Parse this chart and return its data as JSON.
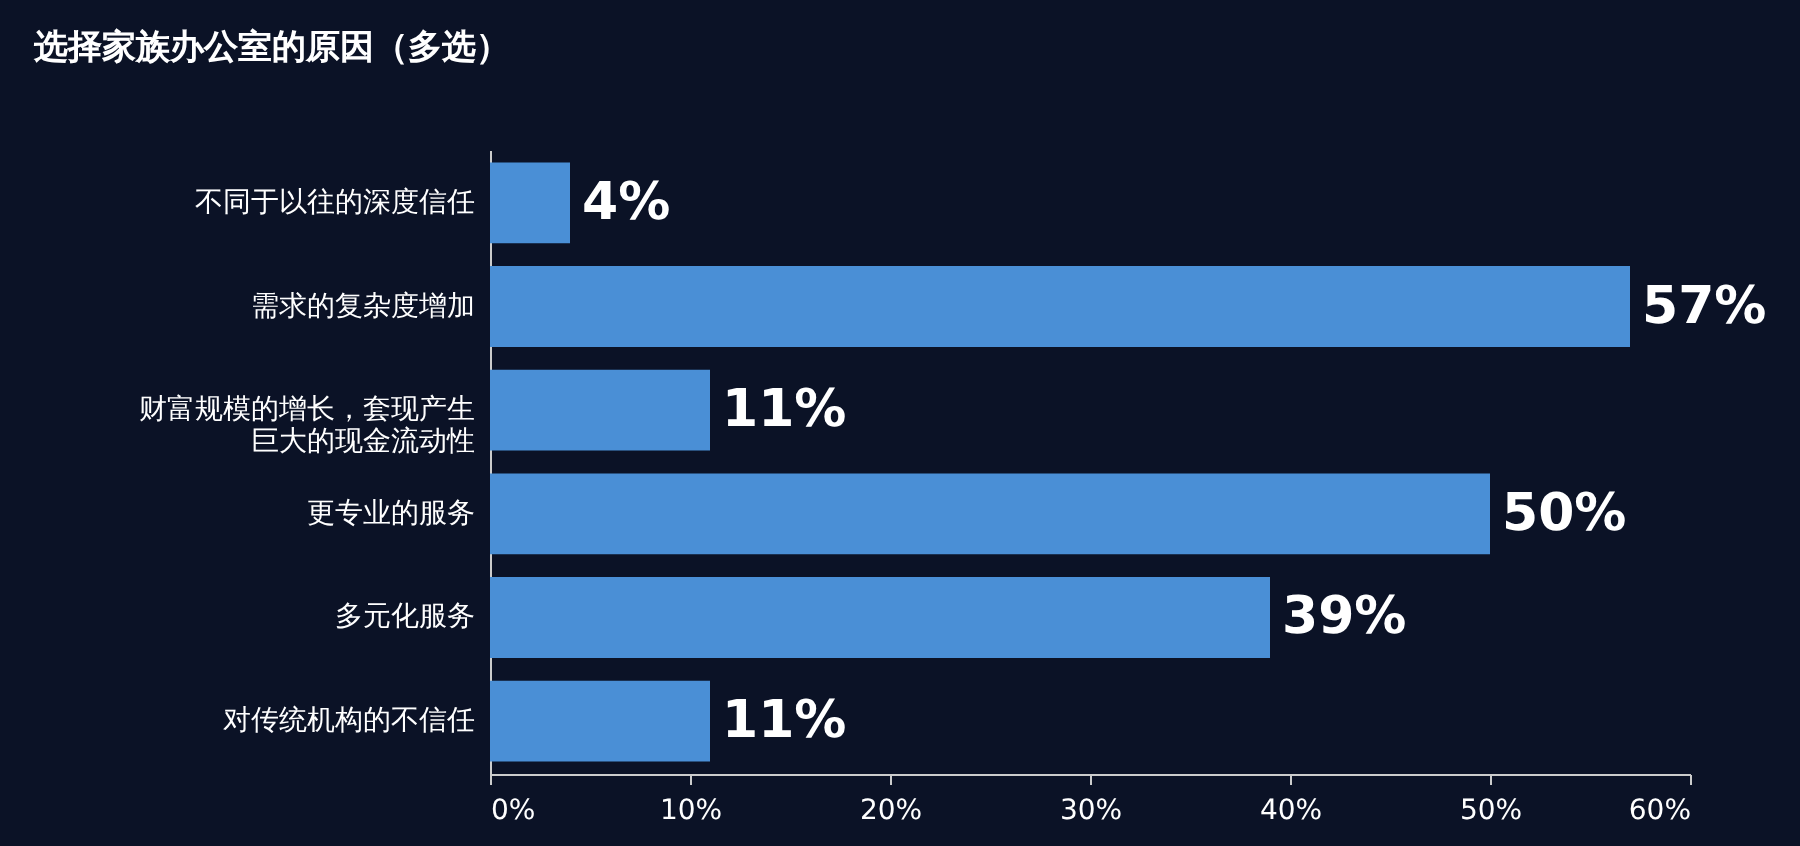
{
  "chart_data": {
    "type": "bar",
    "orientation": "horizontal",
    "title": "选择家族办公室的原因（多选）",
    "categories": [
      "不同于以往的深度信任",
      "需求的复杂度增加",
      "财富规模的增长，套现产生巨大的现金流动性",
      "更专业的服务",
      "多元化服务",
      "对传统机构的不信任"
    ],
    "values": [
      4,
      57,
      11,
      50,
      39,
      11
    ],
    "value_labels": [
      "4%",
      "57%",
      "11%",
      "50%",
      "39%",
      "11%"
    ],
    "color": "#4a8fd6",
    "xlim": [
      0,
      60
    ],
    "xticks": [
      {
        "value": 0,
        "label": "0%"
      },
      {
        "value": 10,
        "label": "10%"
      },
      {
        "value": 20,
        "label": "20%"
      },
      {
        "value": 30,
        "label": "30%"
      },
      {
        "value": 40,
        "label": "40%"
      },
      {
        "value": 50,
        "label": "50%"
      },
      {
        "value": 60,
        "label": "60%"
      }
    ],
    "grid": false
  }
}
